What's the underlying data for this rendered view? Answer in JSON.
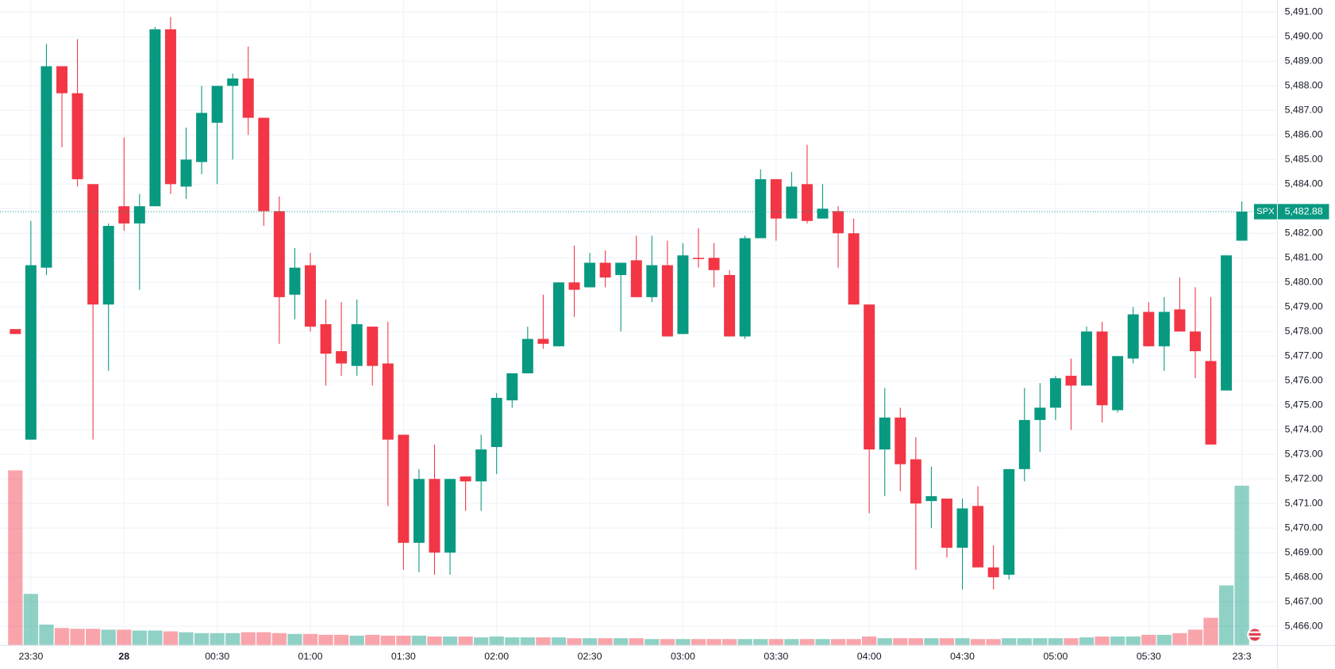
{
  "chart_data": {
    "type": "candlestick",
    "categories": [
      null,
      "23:30",
      null,
      null,
      null,
      null,
      null,
      "28",
      null,
      null,
      null,
      null,
      null,
      "00:30",
      null,
      null,
      null,
      null,
      null,
      "01:00",
      null,
      null,
      null,
      null,
      null,
      "01:30",
      null,
      null,
      null,
      null,
      null,
      "02:00",
      null,
      null,
      null,
      null,
      null,
      "02:30",
      null,
      null,
      null,
      null,
      null,
      "03:00",
      null,
      null,
      null,
      null,
      null,
      "03:30",
      null,
      null,
      null,
      null,
      null,
      "04:00",
      null,
      null,
      null,
      null,
      null,
      "04:30",
      null,
      null,
      null,
      null,
      null,
      "05:00",
      null,
      null,
      null,
      null,
      null,
      "05:30",
      null,
      null,
      null,
      null,
      null,
      "23:3"
    ],
    "open": [
      5478.1,
      5473.6,
      5480.6,
      5488.8,
      5487.7,
      5484.0,
      5479.1,
      5483.1,
      5482.4,
      5483.1,
      5490.3,
      5483.9,
      5484.9,
      5486.5,
      5488.0,
      5488.3,
      5486.7,
      5482.9,
      5479.5,
      5480.7,
      5478.3,
      5477.2,
      5476.6,
      5478.2,
      5476.7,
      5473.8,
      5469.4,
      5472.0,
      5469.0,
      5472.1,
      5471.9,
      5473.3,
      5475.2,
      5476.3,
      5477.7,
      5477.4,
      5480.0,
      5479.8,
      5480.8,
      5480.3,
      5480.9,
      5479.4,
      5480.7,
      5477.9,
      5481.0,
      5481.0,
      5480.3,
      5477.8,
      5481.8,
      5484.2,
      5482.6,
      5484.0,
      5482.6,
      5482.9,
      5482.0,
      5479.1,
      5473.2,
      5474.5,
      5472.8,
      5471.1,
      5471.2,
      5469.2,
      5470.9,
      5468.4,
      5468.1,
      5472.4,
      5474.4,
      5474.9,
      5476.2,
      5475.8,
      5478.0,
      5474.8,
      5476.9,
      5478.8,
      5477.4,
      5478.9,
      5478.0,
      5476.8,
      5475.6,
      5481.7
    ],
    "high": [
      5478.1,
      5482.5,
      5489.7,
      5488.8,
      5489.9,
      5484.0,
      5482.4,
      5485.9,
      5483.6,
      5490.4,
      5490.8,
      5486.3,
      5488.0,
      5488.0,
      5488.5,
      5489.6,
      5486.7,
      5483.5,
      5481.4,
      5481.2,
      5479.3,
      5479.2,
      5479.3,
      5478.2,
      5478.4,
      5473.8,
      5472.4,
      5473.4,
      5472.0,
      5472.1,
      5473.8,
      5475.5,
      5476.3,
      5478.2,
      5479.5,
      5480.0,
      5481.5,
      5481.2,
      5481.3,
      5480.8,
      5481.9,
      5481.9,
      5481.7,
      5481.6,
      5482.2,
      5481.6,
      5480.5,
      5481.9,
      5484.6,
      5484.2,
      5484.5,
      5485.6,
      5484.0,
      5483.1,
      5482.6,
      5479.1,
      5475.7,
      5474.9,
      5473.7,
      5472.5,
      5471.2,
      5471.2,
      5471.7,
      5469.3,
      5472.4,
      5475.7,
      5475.9,
      5476.2,
      5476.9,
      5478.2,
      5478.4,
      5477.0,
      5479.0,
      5479.2,
      5479.4,
      5480.2,
      5479.8,
      5479.4,
      5481.1,
      5483.3
    ],
    "low": [
      5477.9,
      5473.6,
      5480.3,
      5485.5,
      5483.9,
      5473.6,
      5476.4,
      5482.1,
      5479.7,
      5483.1,
      5483.6,
      5483.4,
      5484.4,
      5484.0,
      5485.0,
      5486.0,
      5482.3,
      5477.5,
      5478.5,
      5478.0,
      5475.8,
      5476.2,
      5476.2,
      5475.8,
      5470.9,
      5468.3,
      5468.2,
      5468.1,
      5468.1,
      5470.7,
      5470.7,
      5472.2,
      5474.9,
      5476.3,
      5477.3,
      5477.4,
      5478.6,
      5479.8,
      5479.8,
      5478.0,
      5479.4,
      5479.2,
      5477.8,
      5477.9,
      5480.6,
      5479.8,
      5477.8,
      5477.7,
      5481.8,
      5481.7,
      5482.6,
      5482.4,
      5482.6,
      5480.6,
      5479.1,
      5470.6,
      5471.3,
      5471.5,
      5468.3,
      5470.0,
      5468.8,
      5467.5,
      5468.4,
      5467.5,
      5467.9,
      5471.9,
      5473.1,
      5474.4,
      5474.0,
      5475.8,
      5474.3,
      5474.7,
      5476.7,
      5477.4,
      5476.4,
      5478.0,
      5476.1,
      5473.4,
      5475.6,
      5481.7
    ],
    "close": [
      5477.9,
      5480.7,
      5488.8,
      5487.7,
      5484.2,
      5479.1,
      5482.3,
      5482.4,
      5483.1,
      5490.3,
      5484.0,
      5485.0,
      5486.9,
      5488.0,
      5488.3,
      5486.7,
      5482.9,
      5479.4,
      5480.6,
      5478.2,
      5477.1,
      5476.7,
      5478.3,
      5476.6,
      5473.6,
      5469.4,
      5472.0,
      5469.0,
      5472.0,
      5471.9,
      5473.2,
      5475.3,
      5476.3,
      5477.7,
      5477.5,
      5480.0,
      5479.7,
      5480.8,
      5480.2,
      5480.8,
      5479.4,
      5480.7,
      5477.8,
      5481.1,
      5480.95,
      5480.5,
      5477.8,
      5481.8,
      5484.2,
      5482.6,
      5483.9,
      5482.5,
      5483.0,
      5482.0,
      5479.1,
      5473.2,
      5474.5,
      5472.6,
      5471.0,
      5471.3,
      5469.2,
      5470.8,
      5468.4,
      5468.0,
      5472.4,
      5474.4,
      5474.9,
      5476.1,
      5475.8,
      5478.0,
      5475.0,
      5477.0,
      5478.7,
      5477.4,
      5478.8,
      5478.0,
      5477.2,
      5473.4,
      5481.1,
      5482.88
    ],
    "volume": [
      205,
      60,
      24,
      20,
      19,
      19,
      18,
      18,
      17,
      17,
      16,
      15,
      14,
      14,
      14,
      15,
      15,
      14,
      13,
      13,
      12,
      12,
      11,
      12,
      11,
      11,
      11,
      10,
      10,
      10,
      9,
      10,
      9,
      9,
      9,
      9,
      8,
      8,
      8,
      8,
      8,
      7,
      7,
      7,
      7,
      7,
      7,
      7,
      7,
      7,
      7,
      7,
      7,
      7,
      7,
      10,
      8,
      8,
      8,
      8,
      8,
      8,
      7,
      7,
      8,
      8,
      8,
      8,
      8,
      9,
      10,
      10,
      10,
      12,
      12,
      14,
      18,
      32,
      70,
      187
    ],
    "up_color": "#089981",
    "down_color": "#f23645",
    "volume_up_color": "rgba(8,153,129,0.45)",
    "volume_down_color": "rgba(242,54,69,0.45)",
    "ylim": [
      5465.24,
      5491.49
    ],
    "yticks": [
      {
        "value": 5466,
        "label": "5,466.00"
      },
      {
        "value": 5467,
        "label": "5,467.00"
      },
      {
        "value": 5468,
        "label": "5,468.00"
      },
      {
        "value": 5469,
        "label": "5,469.00"
      },
      {
        "value": 5470,
        "label": "5,470.00"
      },
      {
        "value": 5471,
        "label": "5,471.00"
      },
      {
        "value": 5472,
        "label": "5,472.00"
      },
      {
        "value": 5473,
        "label": "5,473.00"
      },
      {
        "value": 5474,
        "label": "5,474.00"
      },
      {
        "value": 5475,
        "label": "5,475.00"
      },
      {
        "value": 5476,
        "label": "5,476.00"
      },
      {
        "value": 5477,
        "label": "5,477.00"
      },
      {
        "value": 5478,
        "label": "5,478.00"
      },
      {
        "value": 5479,
        "label": "5,479.00"
      },
      {
        "value": 5480,
        "label": "5,480.00"
      },
      {
        "value": 5481,
        "label": "5,481.00"
      },
      {
        "value": 5482,
        "label": "5,482.00"
      },
      {
        "value": 5483,
        "label": "5,483.00"
      },
      {
        "value": 5484,
        "label": "5,484.00"
      },
      {
        "value": 5485,
        "label": "5,485.00"
      },
      {
        "value": 5486,
        "label": "5,486.00"
      },
      {
        "value": 5487,
        "label": "5,487.00"
      },
      {
        "value": 5488,
        "label": "5,488.00"
      },
      {
        "value": 5489,
        "label": "5,489.00"
      },
      {
        "value": 5490,
        "label": "5,490.00"
      },
      {
        "value": 5491,
        "label": "5,491.00"
      }
    ],
    "grid": true,
    "last_price": {
      "symbol": "SPX",
      "value": 5482.88,
      "label": "5,482.88"
    }
  }
}
